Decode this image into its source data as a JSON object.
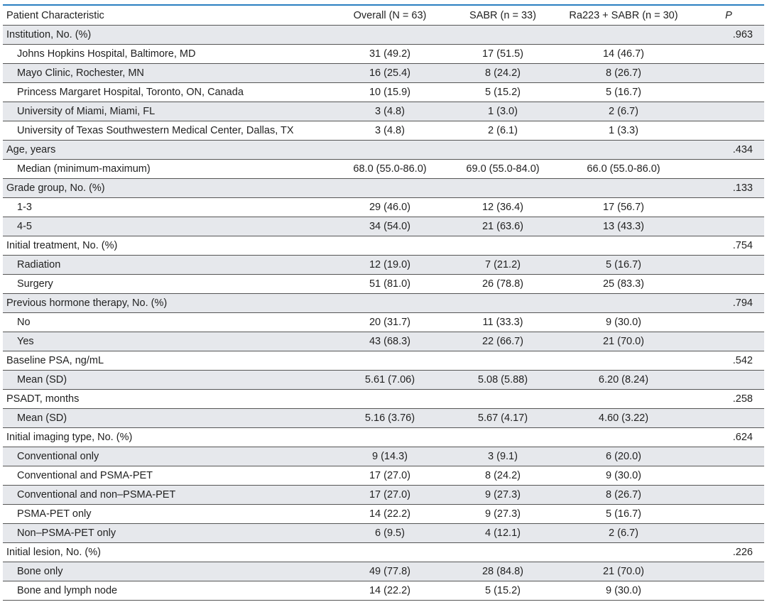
{
  "table": {
    "headers": [
      "Patient Characteristic",
      "Overall (N = 63)",
      "SABR (n = 33)",
      "Ra223 + SABR (n = 30)",
      "P"
    ],
    "rows": [
      {
        "type": "section",
        "shaded": true,
        "label": "Institution, No. (%)",
        "overall": "",
        "sabr": "",
        "ra223": "",
        "p": ".963"
      },
      {
        "type": "item",
        "shaded": false,
        "label": "Johns Hopkins Hospital, Baltimore, MD",
        "overall": "31 (49.2)",
        "sabr": "17 (51.5)",
        "ra223": "14 (46.7)",
        "p": ""
      },
      {
        "type": "item",
        "shaded": true,
        "label": "Mayo Clinic, Rochester, MN",
        "overall": "16 (25.4)",
        "sabr": "8 (24.2)",
        "ra223": "8 (26.7)",
        "p": ""
      },
      {
        "type": "item",
        "shaded": false,
        "label": "Princess Margaret Hospital, Toronto, ON, Canada",
        "overall": "10 (15.9)",
        "sabr": "5 (15.2)",
        "ra223": "5 (16.7)",
        "p": ""
      },
      {
        "type": "item",
        "shaded": true,
        "label": "University of Miami, Miami, FL",
        "overall": "3 (4.8)",
        "sabr": "1 (3.0)",
        "ra223": "2 (6.7)",
        "p": ""
      },
      {
        "type": "item",
        "shaded": false,
        "label": "University of Texas Southwestern Medical Center, Dallas, TX",
        "overall": "3 (4.8)",
        "sabr": "2 (6.1)",
        "ra223": "1 (3.3)",
        "p": ""
      },
      {
        "type": "section",
        "shaded": true,
        "label": "Age, years",
        "overall": "",
        "sabr": "",
        "ra223": "",
        "p": ".434"
      },
      {
        "type": "item",
        "shaded": false,
        "label": "Median (minimum-maximum)",
        "overall": "68.0 (55.0-86.0)",
        "sabr": "69.0 (55.0-84.0)",
        "ra223": "66.0 (55.0-86.0)",
        "p": ""
      },
      {
        "type": "section",
        "shaded": true,
        "label": "Grade group, No. (%)",
        "overall": "",
        "sabr": "",
        "ra223": "",
        "p": ".133"
      },
      {
        "type": "item",
        "shaded": false,
        "label": "1-3",
        "overall": "29 (46.0)",
        "sabr": "12 (36.4)",
        "ra223": "17 (56.7)",
        "p": ""
      },
      {
        "type": "item",
        "shaded": true,
        "label": "4-5",
        "overall": "34 (54.0)",
        "sabr": "21 (63.6)",
        "ra223": "13 (43.3)",
        "p": ""
      },
      {
        "type": "section",
        "shaded": false,
        "label": "Initial treatment, No. (%)",
        "overall": "",
        "sabr": "",
        "ra223": "",
        "p": ".754"
      },
      {
        "type": "item",
        "shaded": true,
        "label": "Radiation",
        "overall": "12 (19.0)",
        "sabr": "7 (21.2)",
        "ra223": "5 (16.7)",
        "p": ""
      },
      {
        "type": "item",
        "shaded": false,
        "label": "Surgery",
        "overall": "51 (81.0)",
        "sabr": "26 (78.8)",
        "ra223": "25 (83.3)",
        "p": ""
      },
      {
        "type": "section",
        "shaded": true,
        "label": "Previous hormone therapy, No. (%)",
        "overall": "",
        "sabr": "",
        "ra223": "",
        "p": ".794"
      },
      {
        "type": "item",
        "shaded": false,
        "label": "No",
        "overall": "20 (31.7)",
        "sabr": "11 (33.3)",
        "ra223": "9 (30.0)",
        "p": ""
      },
      {
        "type": "item",
        "shaded": true,
        "label": "Yes",
        "overall": "43 (68.3)",
        "sabr": "22 (66.7)",
        "ra223": "21 (70.0)",
        "p": ""
      },
      {
        "type": "section",
        "shaded": false,
        "label": "Baseline PSA, ng/mL",
        "overall": "",
        "sabr": "",
        "ra223": "",
        "p": ".542"
      },
      {
        "type": "item",
        "shaded": true,
        "label": "Mean (SD)",
        "overall": "5.61 (7.06)",
        "sabr": "5.08 (5.88)",
        "ra223": "6.20 (8.24)",
        "p": ""
      },
      {
        "type": "section",
        "shaded": false,
        "label": "PSADT, months",
        "overall": "",
        "sabr": "",
        "ra223": "",
        "p": ".258"
      },
      {
        "type": "item",
        "shaded": true,
        "label": "Mean (SD)",
        "overall": "5.16 (3.76)",
        "sabr": "5.67 (4.17)",
        "ra223": "4.60 (3.22)",
        "p": ""
      },
      {
        "type": "section",
        "shaded": false,
        "label": "Initial imaging type, No. (%)",
        "overall": "",
        "sabr": "",
        "ra223": "",
        "p": ".624"
      },
      {
        "type": "item",
        "shaded": true,
        "label": "Conventional only",
        "overall": "9 (14.3)",
        "sabr": "3 (9.1)",
        "ra223": "6 (20.0)",
        "p": ""
      },
      {
        "type": "item",
        "shaded": false,
        "label": "Conventional and PSMA-PET",
        "overall": "17 (27.0)",
        "sabr": "8 (24.2)",
        "ra223": "9 (30.0)",
        "p": ""
      },
      {
        "type": "item",
        "shaded": true,
        "label": "Conventional and non–PSMA-PET",
        "overall": "17 (27.0)",
        "sabr": "9 (27.3)",
        "ra223": "8 (26.7)",
        "p": ""
      },
      {
        "type": "item",
        "shaded": false,
        "label": "PSMA-PET only",
        "overall": "14 (22.2)",
        "sabr": "9 (27.3)",
        "ra223": "5 (16.7)",
        "p": ""
      },
      {
        "type": "item",
        "shaded": true,
        "label": "Non–PSMA-PET only",
        "overall": "6 (9.5)",
        "sabr": "4 (12.1)",
        "ra223": "2 (6.7)",
        "p": ""
      },
      {
        "type": "section",
        "shaded": false,
        "label": "Initial lesion, No. (%)",
        "overall": "",
        "sabr": "",
        "ra223": "",
        "p": ".226"
      },
      {
        "type": "item",
        "shaded": true,
        "label": "Bone only",
        "overall": "49 (77.8)",
        "sabr": "28 (84.8)",
        "ra223": "21 (70.0)",
        "p": ""
      },
      {
        "type": "item",
        "shaded": false,
        "label": "Bone and lymph node",
        "overall": "14 (22.2)",
        "sabr": "5 (15.2)",
        "ra223": "9 (30.0)",
        "p": ""
      }
    ]
  }
}
